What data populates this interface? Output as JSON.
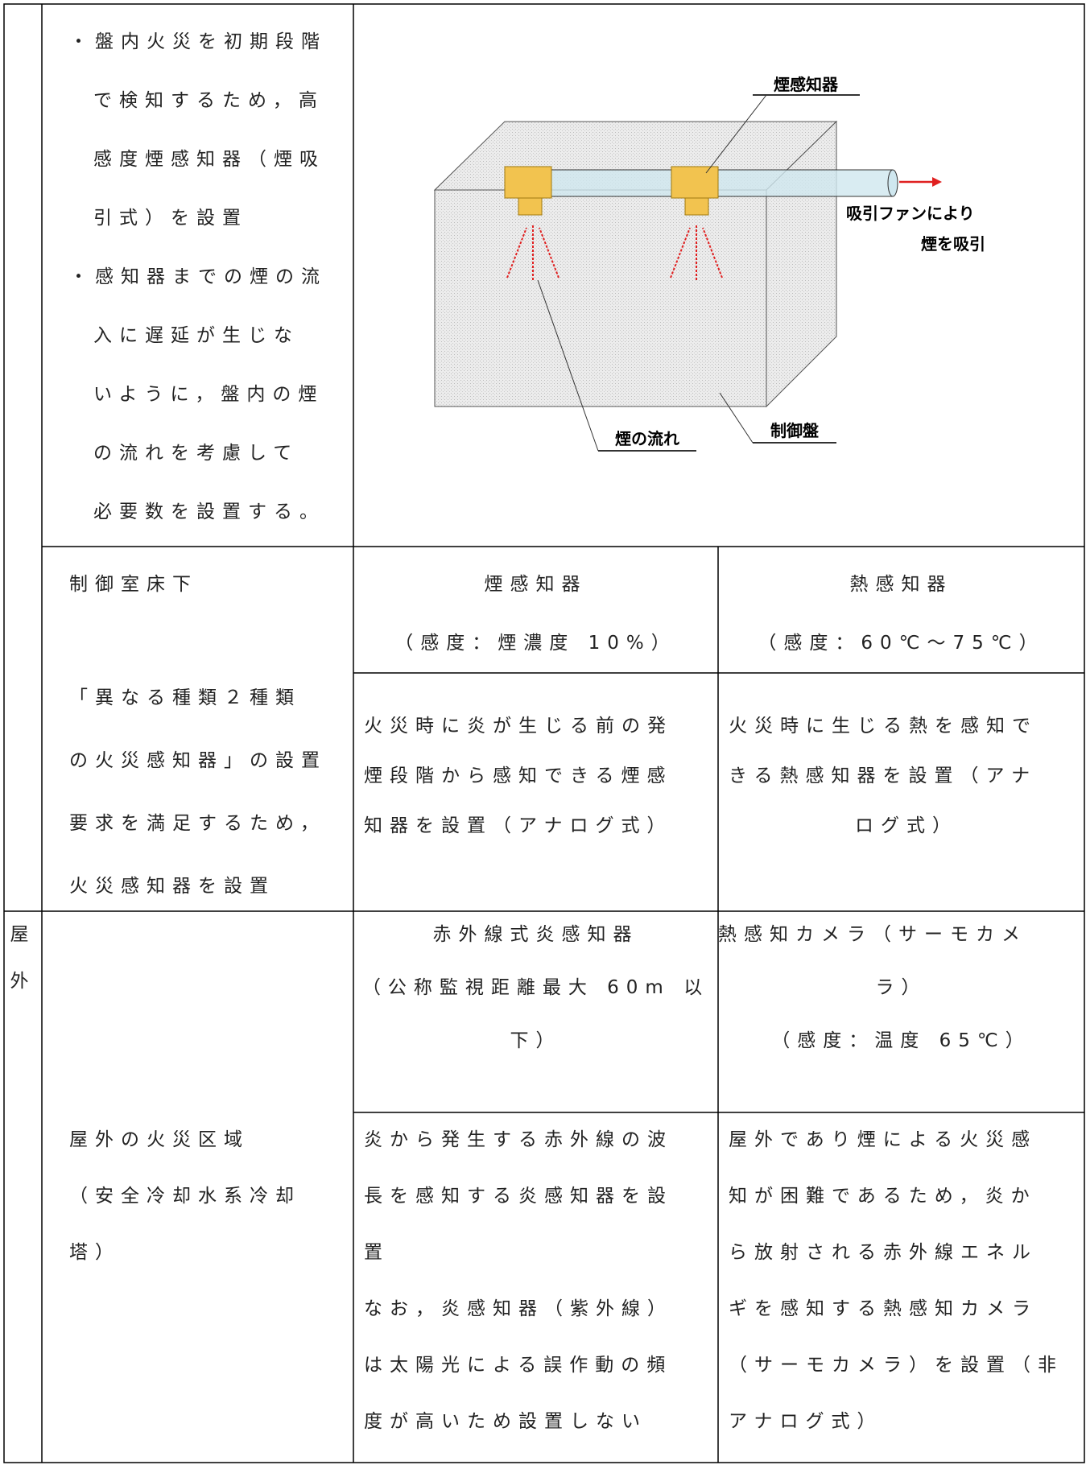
{
  "table": {
    "rows": [
      {
        "cells": [
          {
            "lines": [
              "・盤内火災を初期段階",
              "で検知するため，高",
              "感度煙感知器（煙吸",
              "引式）を設置",
              "・感知器までの煙の流",
              "入に遅延が生じな",
              "いように，盤内の煙",
              "の流れを考慮して",
              "必要数を設置する。"
            ]
          }
        ],
        "diagram": {
          "smoke_detector": "煙感知器",
          "fan_lines": [
            "吸引ファンにより",
            "煙を吸引"
          ],
          "smoke_flow": "煙の流れ",
          "control_panel": "制御盤"
        }
      },
      {
        "cells": [
          {
            "lines": [
              "制御室床下"
            ]
          },
          {
            "lines": [
              "「異なる種類２種類",
              "の火災感知器」の設置",
              "要求を満足するため，",
              "火災感知器を設置"
            ]
          },
          {
            "lines": [
              "煙感知器",
              "（感度：煙濃度 10%）"
            ]
          },
          {
            "lines": [
              "火災時に炎が生じる前の発",
              "煙段階から感知できる煙感",
              "知器を設置（アナログ式）"
            ]
          },
          {
            "lines": [
              "熱感知器",
              "（感度：60℃～75℃）"
            ]
          },
          {
            "lines": [
              "火災時に生じる熱を感知で",
              "きる熱感知器を設置（アナ",
              "ログ式）"
            ]
          }
        ]
      },
      {
        "cells": [
          {
            "lines": [
              "屋",
              "外"
            ]
          },
          {
            "lines": [
              "屋外の火災区域",
              "（安全冷却水系冷却",
              "塔）"
            ]
          },
          {
            "lines": [
              "赤外線式炎感知器",
              "（公称監視距離最大 60m 以",
              "下）"
            ]
          },
          {
            "lines": [
              "炎から発生する赤外線の波",
              "長を感知する炎感知器を設",
              "置",
              "なお，炎感知器（紫外線）",
              "は太陽光による誤作動の頻",
              "度が高いため設置しない"
            ]
          },
          {
            "lines": [
              "熱感知カメラ（サーモカメ",
              "ラ）",
              "（感度：温度 65℃）"
            ]
          },
          {
            "lines": [
              "屋外であり煙による火災感",
              "知が困難であるため，炎か",
              "ら放射される赤外線エネル",
              "ギを感知する熱感知カメラ",
              "（サーモカメラ）を設置（非",
              "アナログ式）"
            ]
          }
        ]
      }
    ]
  }
}
